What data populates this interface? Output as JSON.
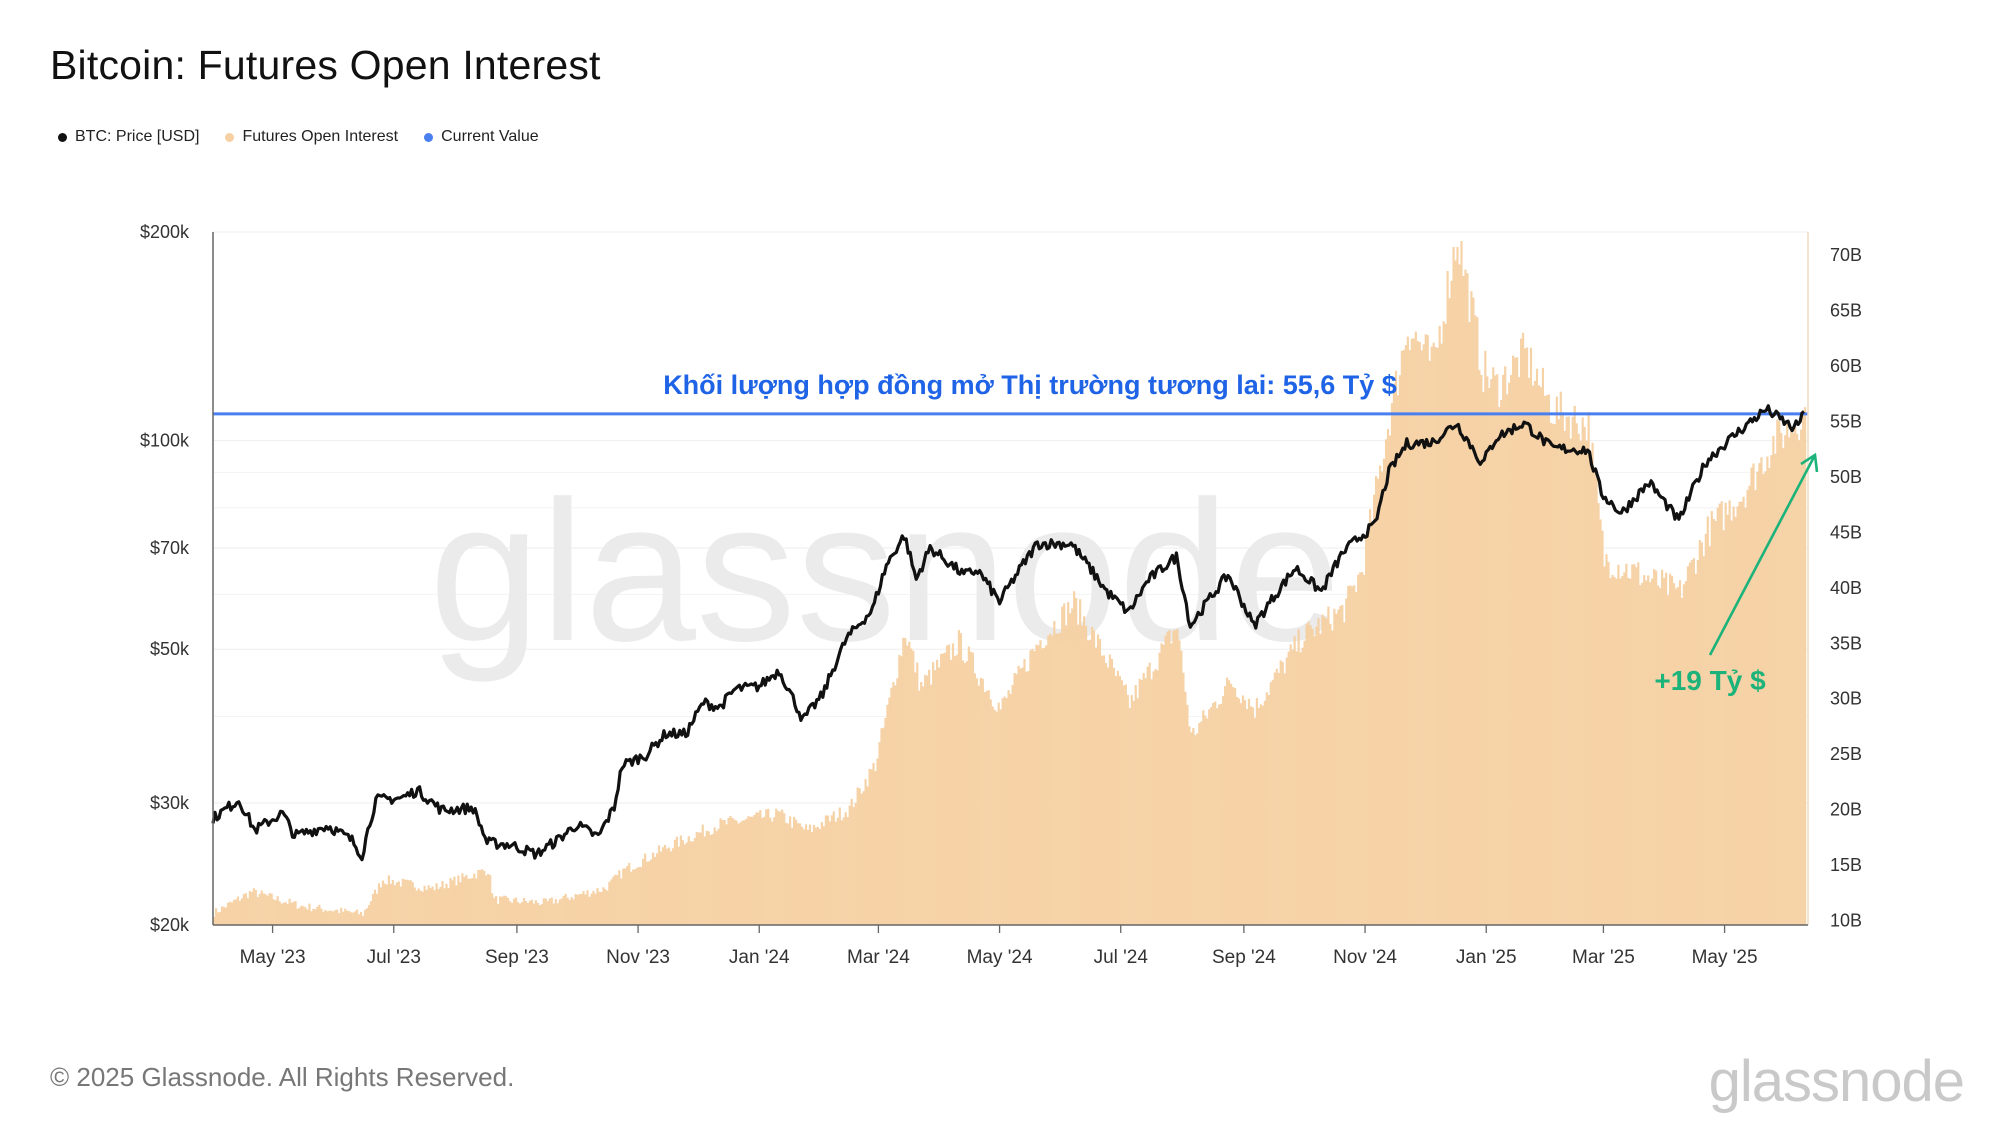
{
  "title": "Bitcoin: Futures Open Interest",
  "legend": [
    {
      "label": "BTC: Price [USD]",
      "color": "#111111"
    },
    {
      "label": "Futures Open Interest",
      "color": "#f6d0a2"
    },
    {
      "label": "Current Value",
      "color": "#4a7ff0"
    }
  ],
  "watermark": "glassnode",
  "footer": "© 2025 Glassnode. All Rights Reserved.",
  "brand": "glassnode",
  "chart_data": {
    "type": "line",
    "title": "Bitcoin: Futures Open Interest",
    "x_ticks": [
      "May '23",
      "Jul '23",
      "Sep '23",
      "Nov '23",
      "Jan '24",
      "Mar '24",
      "May '24",
      "Jul '24",
      "Sep '24",
      "Nov '24",
      "Jan '25",
      "Mar '25",
      "May '25"
    ],
    "y_left": {
      "scale": "log",
      "range": [
        20000,
        200000
      ],
      "ticks": [
        20000,
        30000,
        50000,
        70000,
        100000,
        200000
      ],
      "tick_labels": [
        "$20k",
        "$30k",
        "$50k",
        "$70k",
        "$100k",
        "$200k"
      ]
    },
    "y_right": {
      "scale": "linear",
      "range": [
        9.5,
        72
      ],
      "ticks": [
        10,
        15,
        20,
        25,
        30,
        35,
        40,
        45,
        50,
        55,
        60,
        65,
        70
      ],
      "tick_labels": [
        "10B",
        "15B",
        "20B",
        "25B",
        "30B",
        "35B",
        "40B",
        "45B",
        "50B",
        "55B",
        "60B",
        "65B",
        "70B"
      ]
    },
    "x_range": [
      "2023-04-01",
      "2025-06-12"
    ],
    "series": [
      {
        "name": "BTC: Price [USD]",
        "axis": "left",
        "color": "#111111",
        "points": [
          [
            "2023-04-01",
            28500
          ],
          [
            "2023-04-14",
            30300
          ],
          [
            "2023-04-22",
            27400
          ],
          [
            "2023-05-06",
            29000
          ],
          [
            "2023-05-12",
            26900
          ],
          [
            "2023-05-29",
            27800
          ],
          [
            "2023-06-10",
            26500
          ],
          [
            "2023-06-15",
            25200
          ],
          [
            "2023-06-22",
            30300
          ],
          [
            "2023-07-05",
            30500
          ],
          [
            "2023-07-13",
            31300
          ],
          [
            "2023-07-25",
            29300
          ],
          [
            "2023-08-10",
            29500
          ],
          [
            "2023-08-17",
            26300
          ],
          [
            "2023-08-29",
            26100
          ],
          [
            "2023-09-11",
            25300
          ],
          [
            "2023-09-22",
            26600
          ],
          [
            "2023-10-01",
            27900
          ],
          [
            "2023-10-12",
            26800
          ],
          [
            "2023-10-20",
            29600
          ],
          [
            "2023-10-24",
            34000
          ],
          [
            "2023-11-05",
            35200
          ],
          [
            "2023-11-15",
            37800
          ],
          [
            "2023-11-25",
            37700
          ],
          [
            "2023-12-04",
            41900
          ],
          [
            "2023-12-12",
            41200
          ],
          [
            "2023-12-20",
            43800
          ],
          [
            "2024-01-01",
            44200
          ],
          [
            "2024-01-11",
            46600
          ],
          [
            "2024-01-23",
            39500
          ],
          [
            "2024-02-02",
            43000
          ],
          [
            "2024-02-14",
            51800
          ],
          [
            "2024-02-27",
            57000
          ],
          [
            "2024-03-05",
            66000
          ],
          [
            "2024-03-14",
            73000
          ],
          [
            "2024-03-20",
            63000
          ],
          [
            "2024-03-27",
            70000
          ],
          [
            "2024-04-13",
            64000
          ],
          [
            "2024-04-20",
            65000
          ],
          [
            "2024-05-01",
            58500
          ],
          [
            "2024-05-20",
            71000
          ],
          [
            "2024-06-06",
            71000
          ],
          [
            "2024-06-24",
            60500
          ],
          [
            "2024-07-05",
            56500
          ],
          [
            "2024-07-15",
            63000
          ],
          [
            "2024-07-29",
            68000
          ],
          [
            "2024-08-05",
            54000
          ],
          [
            "2024-08-24",
            64000
          ],
          [
            "2024-09-06",
            54000
          ],
          [
            "2024-09-27",
            65500
          ],
          [
            "2024-10-10",
            60500
          ],
          [
            "2024-10-21",
            69000
          ],
          [
            "2024-10-29",
            72500
          ],
          [
            "2024-11-06",
            75500
          ],
          [
            "2024-11-13",
            90000
          ],
          [
            "2024-11-22",
            99000
          ],
          [
            "2024-12-05",
            99500
          ],
          [
            "2024-12-17",
            106000
          ],
          [
            "2024-12-30",
            92500
          ],
          [
            "2025-01-06",
            101000
          ],
          [
            "2025-01-20",
            106000
          ],
          [
            "2025-02-03",
            97500
          ],
          [
            "2025-02-21",
            97000
          ],
          [
            "2025-02-28",
            84000
          ],
          [
            "2025-03-10",
            78500
          ],
          [
            "2025-03-24",
            87000
          ],
          [
            "2025-04-08",
            76500
          ],
          [
            "2025-04-22",
            93500
          ],
          [
            "2025-05-08",
            103000
          ],
          [
            "2025-05-22",
            111000
          ],
          [
            "2025-06-05",
            104000
          ],
          [
            "2025-06-10",
            109000
          ]
        ]
      },
      {
        "name": "Futures Open Interest",
        "axis": "right",
        "unit": "B USD",
        "color": "#f6d0a2",
        "points": [
          [
            "2023-04-01",
            10.6
          ],
          [
            "2023-04-20",
            12.5
          ],
          [
            "2023-05-15",
            11.2
          ],
          [
            "2023-06-15",
            10.5
          ],
          [
            "2023-06-25",
            13.6
          ],
          [
            "2023-07-20",
            12.8
          ],
          [
            "2023-08-17",
            14.5
          ],
          [
            "2023-08-20",
            11.8
          ],
          [
            "2023-09-15",
            11.5
          ],
          [
            "2023-10-15",
            12.8
          ],
          [
            "2023-10-25",
            14.5
          ],
          [
            "2023-11-15",
            16.5
          ],
          [
            "2023-12-10",
            18.5
          ],
          [
            "2024-01-10",
            19.5
          ],
          [
            "2024-01-25",
            18.0
          ],
          [
            "2024-02-15",
            20.0
          ],
          [
            "2024-02-28",
            24.0
          ],
          [
            "2024-03-14",
            36.0
          ],
          [
            "2024-03-22",
            31.0
          ],
          [
            "2024-04-10",
            35.0
          ],
          [
            "2024-05-01",
            29.0
          ],
          [
            "2024-05-20",
            35.0
          ],
          [
            "2024-06-07",
            38.5
          ],
          [
            "2024-06-25",
            33.0
          ],
          [
            "2024-07-05",
            29.5
          ],
          [
            "2024-07-29",
            36.5
          ],
          [
            "2024-08-05",
            26.5
          ],
          [
            "2024-08-25",
            31.5
          ],
          [
            "2024-09-06",
            29.0
          ],
          [
            "2024-09-30",
            35.5
          ],
          [
            "2024-10-21",
            38.0
          ],
          [
            "2024-10-30",
            41.5
          ],
          [
            "2024-11-12",
            54.5
          ],
          [
            "2024-11-22",
            63.5
          ],
          [
            "2024-12-05",
            60.0
          ],
          [
            "2024-12-17",
            71.8
          ],
          [
            "2024-12-30",
            59.5
          ],
          [
            "2025-01-06",
            58.0
          ],
          [
            "2025-01-20",
            61.0
          ],
          [
            "2025-02-03",
            56.0
          ],
          [
            "2025-02-21",
            54.5
          ],
          [
            "2025-03-01",
            42.5
          ],
          [
            "2025-03-20",
            41.0
          ],
          [
            "2025-04-08",
            39.5
          ],
          [
            "2025-04-22",
            45.0
          ],
          [
            "2025-05-10",
            48.5
          ],
          [
            "2025-05-25",
            53.0
          ],
          [
            "2025-06-10",
            55.6
          ]
        ]
      }
    ],
    "current_value": {
      "label": "Khối lượng hợp đồng mở Thị trường tương lai: 55,6 Tỷ $",
      "value": 55.6,
      "axis": "right",
      "color": "#4a7ff0"
    },
    "annotations": [
      {
        "text": "+19 Tỷ $",
        "color": "#1cb37a",
        "x": "2025-04-20",
        "y": 29.5
      }
    ],
    "grid": true,
    "legend_position": "top-left"
  }
}
